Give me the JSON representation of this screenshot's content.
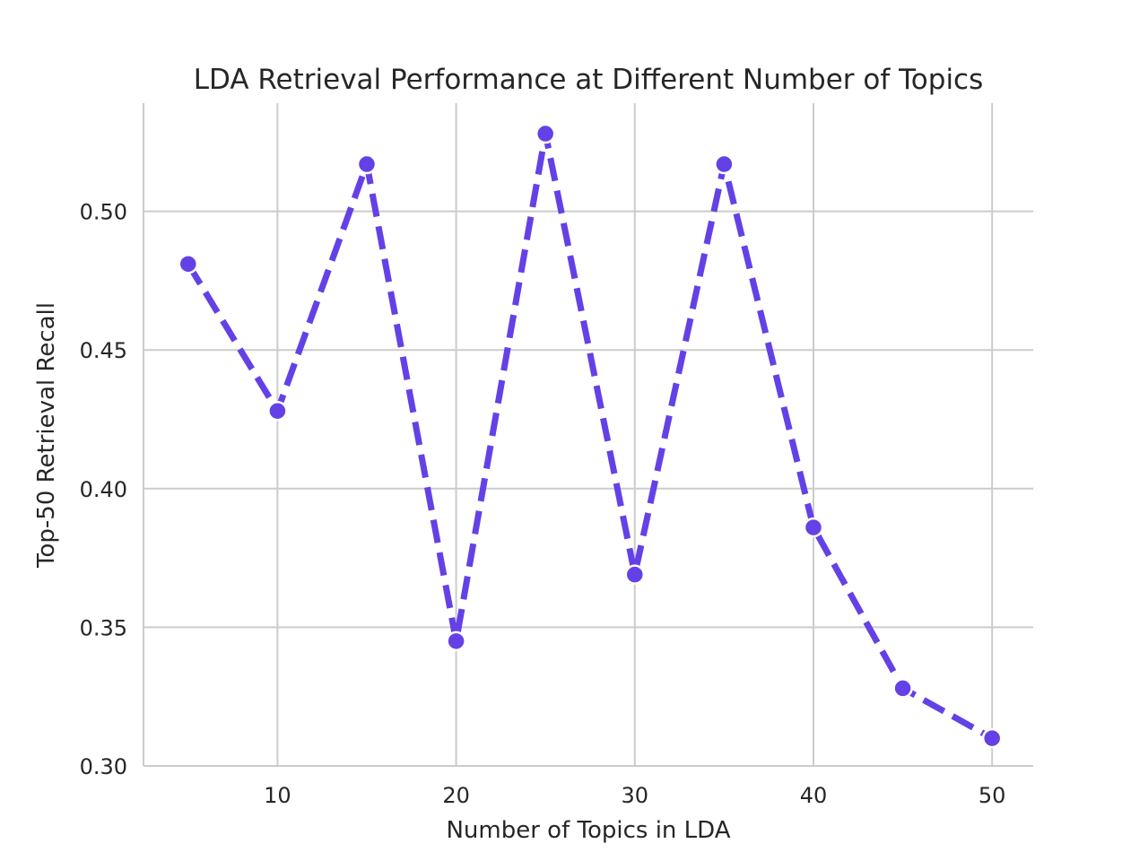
{
  "chart_data": {
    "type": "line",
    "title": "LDA Retrieval Performance at Different Number of Topics",
    "xlabel": "Number of Topics in LDA",
    "ylabel": "Top-50 Retrieval Recall",
    "x": [
      5,
      10,
      15,
      20,
      25,
      30,
      35,
      40,
      45,
      50
    ],
    "series": [
      {
        "values": [
          0.481,
          0.428,
          0.517,
          0.345,
          0.528,
          0.369,
          0.517,
          0.386,
          0.328,
          0.31
        ],
        "color": "#6441e6",
        "line_style": "dashed",
        "marker": "circle"
      }
    ],
    "xlim": [
      2.5,
      52.3
    ],
    "ylim": [
      0.3,
      0.539
    ],
    "xticks": [
      10,
      20,
      30,
      40,
      50
    ],
    "xtick_labels": [
      "10",
      "20",
      "30",
      "40",
      "50"
    ],
    "yticks": [
      0.3,
      0.35,
      0.4,
      0.45,
      0.5
    ],
    "ytick_labels": [
      "0.30",
      "0.35",
      "0.40",
      "0.45",
      "0.50"
    ],
    "grid": true,
    "legend": "none"
  }
}
